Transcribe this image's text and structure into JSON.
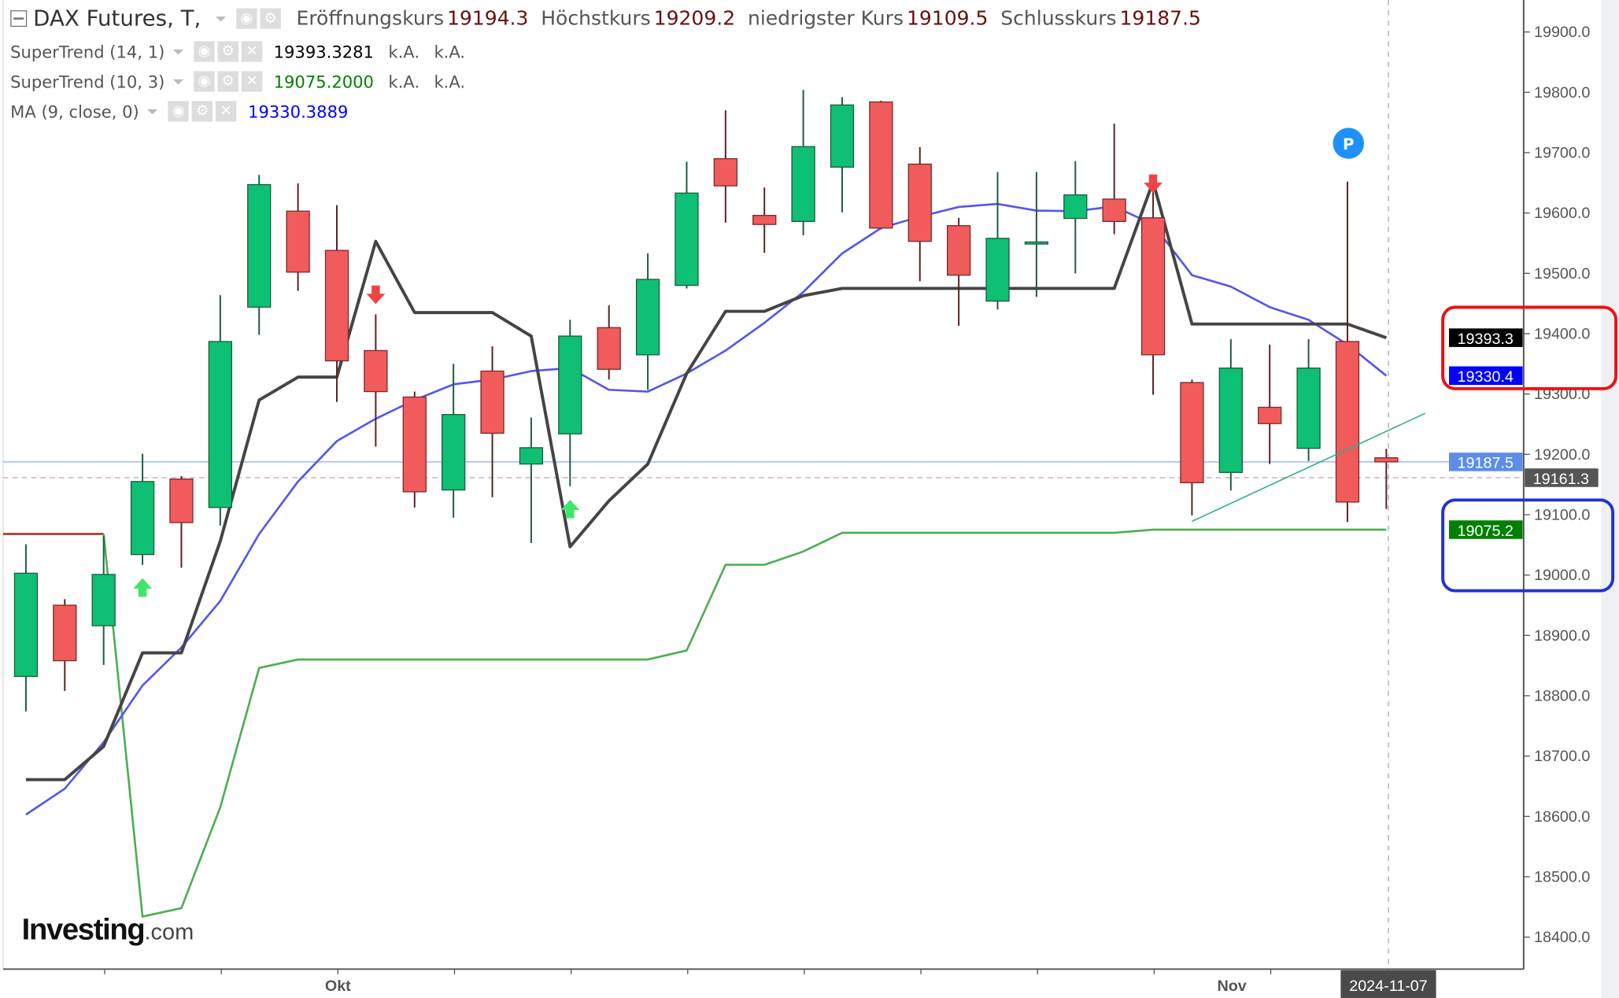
{
  "header": {
    "title": "DAX Futures, T,",
    "open_label": "Eröffnungskurs",
    "open": "19194.3",
    "high_label": "Höchstkurs",
    "high": "19209.2",
    "low_label": "niedrigster Kurs",
    "low": "19109.5",
    "close_label": "Schlusskurs",
    "close": "19187.5"
  },
  "indicators": [
    {
      "name": "SuperTrend (14, 1)",
      "value": "19393.3281",
      "na1": "k.A.",
      "na2": "k.A.",
      "color": "#000000"
    },
    {
      "name": "SuperTrend (10, 3)",
      "value": "19075.2000",
      "na1": "k.A.",
      "na2": "k.A.",
      "color": "#008000"
    },
    {
      "name": "MA (9, close, 0)",
      "value": "19330.3889",
      "color": "#0000ff"
    }
  ],
  "logo": {
    "brand": "Investing",
    "suffix": ".com"
  },
  "chart_data": {
    "type": "candlestick",
    "title": "DAX Futures, T,",
    "ylim": [
      18350,
      19950
    ],
    "y_ticks": [
      "18400.0",
      "18500.0",
      "18600.0",
      "18700.0",
      "18800.0",
      "18900.0",
      "19000.0",
      "19100.0",
      "19200.0",
      "19300.0",
      "19400.0",
      "19500.0",
      "19600.0",
      "19700.0",
      "19800.0",
      "19900.0"
    ],
    "x_labels": [
      {
        "date": "2024-10-01",
        "label": "Okt"
      },
      {
        "date": "2024-11-01",
        "label": "Nov"
      }
    ],
    "cursor_date": "2024-11-07",
    "colors": {
      "up": "#0ec074",
      "down": "#f25b5b",
      "supertrend_14_1": "#444444",
      "supertrend_10_3_up": "#4caf50",
      "supertrend_10_3_down": "#a83232",
      "ma": "#5555ee",
      "trendline": "#2ab090"
    },
    "candles": [
      [
        "2024-09-19",
        18832,
        19051,
        18774,
        19003
      ],
      [
        "2024-09-20",
        18950,
        18960,
        18808,
        18858
      ],
      [
        "2024-09-23",
        18916,
        19065,
        18851,
        19001
      ],
      [
        "2024-09-24",
        19034,
        19201,
        19017,
        19155
      ],
      [
        "2024-09-25",
        19159,
        19164,
        19012,
        19087
      ],
      [
        "2024-09-26",
        19112,
        19464,
        19082,
        19387
      ],
      [
        "2024-09-27",
        19444,
        19663,
        19398,
        19647
      ],
      [
        "2024-09-30",
        19603,
        19649,
        19471,
        19502
      ],
      [
        "2024-10-01",
        19538,
        19613,
        19287,
        19355
      ],
      [
        "2024-10-02",
        19372,
        19432,
        19213,
        19304
      ],
      [
        "2024-10-03",
        19295,
        19304,
        19112,
        19138
      ],
      [
        "2024-10-04",
        19141,
        19350,
        19095,
        19266
      ],
      [
        "2024-10-07",
        19338,
        19379,
        19129,
        19235
      ],
      [
        "2024-10-08",
        19184,
        19261,
        19053,
        19211
      ],
      [
        "2024-10-09",
        19234,
        19423,
        19147,
        19396
      ],
      [
        "2024-10-10",
        19410,
        19447,
        19324,
        19341
      ],
      [
        "2024-10-11",
        19365,
        19533,
        19307,
        19490
      ],
      [
        "2024-10-14",
        19480,
        19685,
        19475,
        19633
      ],
      [
        "2024-10-15",
        19690,
        19770,
        19584,
        19645
      ],
      [
        "2024-10-16",
        19596,
        19642,
        19534,
        19581
      ],
      [
        "2024-10-17",
        19586,
        19804,
        19563,
        19710
      ],
      [
        "2024-10-18",
        19676,
        19792,
        19601,
        19779
      ],
      [
        "2024-10-21",
        19784,
        19786,
        19573,
        19575
      ],
      [
        "2024-10-22",
        19681,
        19709,
        19487,
        19553
      ],
      [
        "2024-10-23",
        19579,
        19592,
        19413,
        19497
      ],
      [
        "2024-10-24",
        19454,
        19668,
        19440,
        19558
      ],
      [
        "2024-10-25",
        19550,
        19668,
        19461,
        19552
      ],
      [
        "2024-10-28",
        19591,
        19686,
        19500,
        19630
      ],
      [
        "2024-10-29",
        19623,
        19748,
        19565,
        19586
      ],
      [
        "2024-10-30",
        19592,
        19657,
        19299,
        19365
      ],
      [
        "2024-10-31",
        19319,
        19324,
        19099,
        19153
      ],
      [
        "2024-11-01",
        19170,
        19391,
        19140,
        19343
      ],
      [
        "2024-11-04",
        19278,
        19382,
        19184,
        19251
      ],
      [
        "2024-11-05",
        19210,
        19391,
        19189,
        19343
      ],
      [
        "2024-11-06",
        19387,
        19652,
        19088,
        19121
      ],
      [
        "2024-11-07",
        19194.3,
        19209.2,
        19109.5,
        19187.5
      ]
    ],
    "series": [
      {
        "name": "SuperTrend (14, 1)",
        "values": [
          18661,
          18661,
          18716,
          18871,
          18871,
          19056,
          19290,
          19328,
          19328,
          19553,
          19435,
          19435,
          19435,
          19396,
          19047,
          19123,
          19184,
          19334,
          19437,
          19437,
          19463,
          19475,
          19475,
          19475,
          19475,
          19475,
          19475,
          19475,
          19475,
          19652,
          19416,
          19416,
          19416,
          19416,
          19416,
          19393.3
        ]
      },
      {
        "name": "SuperTrend (10, 3)",
        "values": [
          null,
          null,
          19068,
          18434,
          18448,
          18615,
          18846,
          18860,
          18860,
          18860,
          18860,
          18860,
          18860,
          18860,
          18860,
          18860,
          18860,
          18875,
          19017,
          19017,
          19039,
          19070,
          19070,
          19070,
          19070,
          19070,
          19070,
          19070,
          19070,
          19075.2,
          19075.2,
          19075.2,
          19075.2,
          19075.2,
          19075.2,
          19075.2
        ],
        "downtrend_values": [
          19068,
          19068,
          19068
        ]
      },
      {
        "name": "MA (9, close, 0)",
        "values": [
          18603,
          18646,
          18723,
          18817,
          18880,
          18957,
          19068,
          19155,
          19222,
          19259,
          19290,
          19316,
          19324,
          19338,
          19343,
          19307,
          19304,
          19334,
          19372,
          19418,
          19469,
          19533,
          19575,
          19594,
          19610,
          19615,
          19604,
          19603,
          19611,
          19581,
          19497,
          19478,
          19444,
          19423,
          19382,
          19330.4
        ]
      }
    ],
    "signals": [
      {
        "date": "2024-09-24",
        "type": "buy"
      },
      {
        "date": "2024-10-02",
        "type": "sell"
      },
      {
        "date": "2024-10-09",
        "type": "buy"
      },
      {
        "date": "2024-10-30",
        "type": "sell"
      }
    ],
    "trendline": {
      "from": [
        "2024-10-31",
        19089
      ],
      "to_index_offset_days": 6,
      "to_value": 19268
    },
    "price_tags": [
      {
        "value": "19393.3",
        "bg": "#000000"
      },
      {
        "value": "19330.4",
        "bg": "#0000ff"
      },
      {
        "value": "19187.5",
        "bg": "#5b8ee8"
      },
      {
        "value": "19161.3",
        "bg": "#555555"
      },
      {
        "value": "19075.2",
        "bg": "#008000"
      }
    ],
    "marker": {
      "date": "2024-11-06",
      "label": "P",
      "color": "#1e90ff"
    },
    "highlights": [
      {
        "color": "#ee1111"
      },
      {
        "color": "#2233cc"
      }
    ]
  }
}
